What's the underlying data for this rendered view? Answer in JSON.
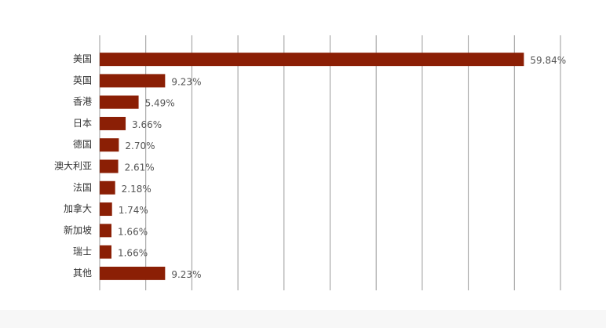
{
  "chart_data": {
    "type": "bar",
    "orientation": "horizontal",
    "categories": [
      "美国",
      "英国",
      "香港",
      "日本",
      "德国",
      "澳大利亚",
      "法国",
      "加拿大",
      "新加坡",
      "瑞士",
      "其他"
    ],
    "values": [
      59.84,
      9.23,
      5.49,
      3.66,
      2.7,
      2.61,
      2.18,
      1.74,
      1.66,
      1.66,
      9.23
    ],
    "value_labels": [
      "59.84%",
      "9.23%",
      "5.49%",
      "3.66%",
      "2.70%",
      "2.61%",
      "2.18%",
      "1.74%",
      "1.66%",
      "1.66%",
      "9.23%"
    ],
    "color": "#8b1f05",
    "xlim": [
      0,
      65
    ],
    "xticks": [
      0,
      6.5,
      13,
      19.5,
      26,
      32.5,
      39,
      45.5,
      52,
      58.5,
      65
    ],
    "grid": true
  }
}
